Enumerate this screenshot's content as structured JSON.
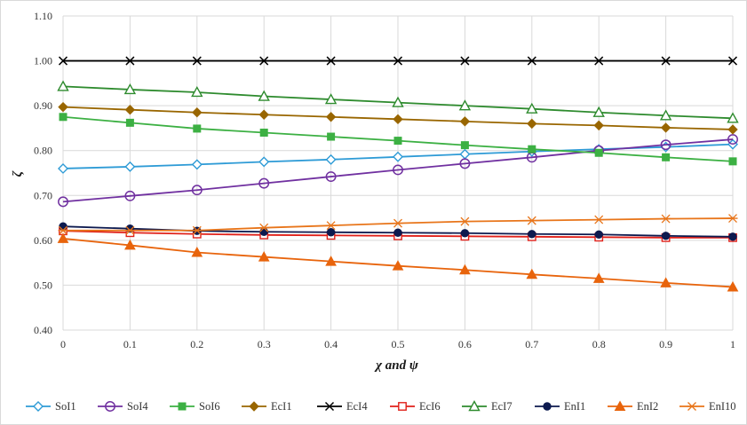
{
  "chart_data": {
    "type": "line",
    "title": "",
    "xlabel": "χ and ψ",
    "ylabel": "ζ",
    "x": [
      0,
      0.1,
      0.2,
      0.3,
      0.4,
      0.5,
      0.6,
      0.7,
      0.8,
      0.9,
      1
    ],
    "x_tick_labels": [
      "0",
      "0.1",
      "0.2",
      "0.3",
      "0.4",
      "0.5",
      "0.6",
      "0.7",
      "0.8",
      "0.9",
      "1"
    ],
    "ylim": [
      0.4,
      1.1
    ],
    "y_ticks": [
      0.4,
      0.5,
      0.6,
      0.7,
      0.8,
      0.9,
      1.0,
      1.1
    ],
    "y_tick_labels": [
      "0.40",
      "0.50",
      "0.60",
      "0.70",
      "0.80",
      "0.90",
      "1.00",
      "1.10"
    ],
    "grid": true,
    "legend_position": "bottom",
    "series": [
      {
        "name": "SoI1",
        "color": "#2e9bd6",
        "marker": "diamond-open",
        "values": [
          0.76,
          0.764,
          0.769,
          0.775,
          0.78,
          0.786,
          0.792,
          0.798,
          0.803,
          0.808,
          0.814
        ]
      },
      {
        "name": "SoI4",
        "color": "#7030a0",
        "marker": "circle-open",
        "values": [
          0.686,
          0.699,
          0.712,
          0.727,
          0.742,
          0.757,
          0.771,
          0.785,
          0.8,
          0.813,
          0.825
        ]
      },
      {
        "name": "SoI6",
        "color": "#3cb043",
        "marker": "square-filled",
        "values": [
          0.875,
          0.862,
          0.849,
          0.84,
          0.831,
          0.822,
          0.812,
          0.803,
          0.795,
          0.785,
          0.776
        ]
      },
      {
        "name": "EcI1",
        "color": "#996600",
        "marker": "diamond-filled",
        "values": [
          0.897,
          0.891,
          0.885,
          0.88,
          0.875,
          0.87,
          0.865,
          0.86,
          0.856,
          0.851,
          0.847
        ]
      },
      {
        "name": "EcI4",
        "color": "#000000",
        "marker": "x",
        "values": [
          1.0,
          1.0,
          1.0,
          1.0,
          1.0,
          1.0,
          1.0,
          1.0,
          1.0,
          1.0,
          1.0
        ]
      },
      {
        "name": "EcI6",
        "color": "#e0211a",
        "marker": "square-open",
        "values": [
          0.621,
          0.617,
          0.614,
          0.612,
          0.611,
          0.61,
          0.609,
          0.608,
          0.607,
          0.606,
          0.606
        ]
      },
      {
        "name": "EcI7",
        "color": "#2e8b2e",
        "marker": "triangle-open",
        "values": [
          0.943,
          0.936,
          0.93,
          0.921,
          0.914,
          0.907,
          0.9,
          0.893,
          0.885,
          0.878,
          0.872
        ]
      },
      {
        "name": "EnI1",
        "color": "#0d1a4f",
        "marker": "circle-filled",
        "values": [
          0.631,
          0.626,
          0.621,
          0.619,
          0.618,
          0.617,
          0.616,
          0.614,
          0.613,
          0.61,
          0.608
        ]
      },
      {
        "name": "EnI2",
        "color": "#e8640c",
        "marker": "triangle-filled",
        "values": [
          0.604,
          0.589,
          0.573,
          0.563,
          0.553,
          0.543,
          0.534,
          0.524,
          0.515,
          0.505,
          0.496
        ]
      },
      {
        "name": "EnI10",
        "color": "#e8751a",
        "marker": "asterisk",
        "values": [
          0.622,
          0.622,
          0.622,
          0.628,
          0.633,
          0.638,
          0.642,
          0.644,
          0.646,
          0.648,
          0.649
        ]
      }
    ]
  }
}
